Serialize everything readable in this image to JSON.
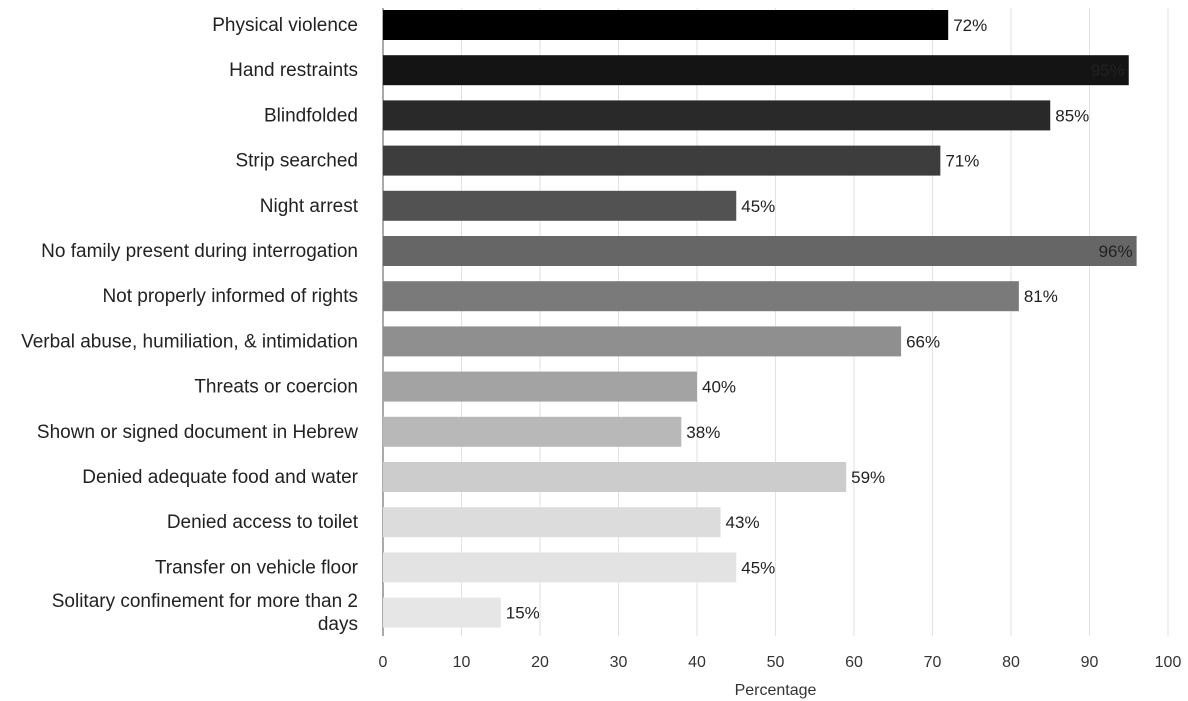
{
  "chart_data": {
    "type": "bar",
    "orientation": "horizontal",
    "categories": [
      "Physical violence",
      "Hand restraints",
      "Blindfolded",
      "Strip searched",
      "Night arrest",
      "No family present during interrogation",
      "Not properly informed of rights",
      "Verbal abuse, humiliation, & intimidation",
      "Threats or coercion",
      "Shown or signed document in Hebrew",
      "Denied adequate food and water",
      "Denied access to toilet",
      "Transfer on vehicle floor",
      "Solitary confinement for more than 2 days"
    ],
    "values": [
      72,
      95,
      85,
      71,
      45,
      96,
      81,
      66,
      40,
      38,
      59,
      43,
      45,
      15
    ],
    "value_labels": [
      "72%",
      "95%",
      "85%",
      "71%",
      "45%",
      "96%",
      "81%",
      "66%",
      "40%",
      "38%",
      "59%",
      "43%",
      "45%",
      "15%"
    ],
    "bar_colors": [
      "#000000",
      "#141414",
      "#292929",
      "#3d3d3d",
      "#525252",
      "#666666",
      "#7a7a7a",
      "#8f8f8f",
      "#a3a3a3",
      "#b8b8b8",
      "#cccccc",
      "#dcdcdc",
      "#e3e3e3",
      "#e6e6e6"
    ],
    "xlabel": "Percentage",
    "ylabel": "",
    "xlim": [
      0,
      100
    ],
    "xticks": [
      0,
      10,
      20,
      30,
      40,
      50,
      60,
      70,
      80,
      90,
      100
    ],
    "grid": true,
    "legend": "none"
  }
}
